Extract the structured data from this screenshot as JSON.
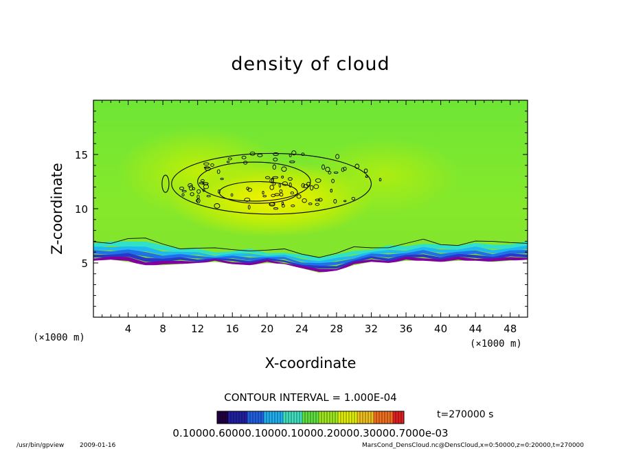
{
  "footer": {
    "program": "/usr/bin/gpview",
    "date": "2009-01-16",
    "source": "MarsCond_DensCloud.nc@DensCloud,x=0:50000,z=0:20000,t=270000"
  },
  "colors": {
    "frame": "#000000",
    "ground": "#ffffff",
    "bg_green": "#7ce632",
    "core_yellow": "#e8f000",
    "base_cyan": "#20d8e0",
    "base_blue": "#2050e0",
    "base_purple": "#8000a0",
    "contour": "#000000"
  },
  "chart_data": {
    "type": "heatmap",
    "title": "density of cloud",
    "xlabel": "X-coordinate",
    "ylabel": "Z-coordinate",
    "x_unit_label": "(×1000 m)",
    "y_unit_label": "(×1000 m)",
    "xlim": [
      0,
      50
    ],
    "ylim": [
      0,
      20
    ],
    "x_ticks": [
      4,
      8,
      12,
      16,
      20,
      24,
      28,
      32,
      36,
      40,
      44,
      48
    ],
    "y_ticks": [
      5,
      10,
      15
    ],
    "grid": false,
    "contour_interval_text": "CONTOUR INTERVAL = 1.000E-04",
    "time_text": "t=270000 s",
    "colorbar_labels_text": "0.10000.60000.10000.10000.20000.30000.7000e-03",
    "colorbar_colors": [
      "#200040",
      "#2020a0",
      "#2060e0",
      "#20b0f0",
      "#40e0c0",
      "#60e040",
      "#a0e820",
      "#e0f000",
      "#f0c020",
      "#f07020",
      "#e02020"
    ],
    "cloud_base_profile": {
      "x": [
        0,
        2,
        4,
        6,
        8,
        10,
        12,
        14,
        16,
        18,
        20,
        22,
        24,
        26,
        28,
        30,
        32,
        34,
        36,
        38,
        40,
        42,
        44,
        46,
        48,
        50
      ],
      "z": [
        6.8,
        6.9,
        7.1,
        6.9,
        6.6,
        6.4,
        6.2,
        6.0,
        6.1,
        6.2,
        6.0,
        5.9,
        5.7,
        5.6,
        5.7,
        6.1,
        6.3,
        6.5,
        6.6,
        6.8,
        6.6,
        6.7,
        6.8,
        6.6,
        6.8,
        6.9
      ]
    },
    "bottom_edge_profile": {
      "x": [
        0,
        2,
        4,
        6,
        8,
        10,
        12,
        14,
        16,
        18,
        20,
        22,
        24,
        26,
        28,
        30,
        32,
        34,
        36,
        38,
        40,
        42,
        44,
        46,
        48,
        50
      ],
      "z": [
        5.2,
        5.3,
        5.1,
        4.8,
        4.8,
        4.9,
        5.0,
        5.1,
        4.9,
        4.8,
        5.0,
        4.9,
        4.5,
        4.1,
        4.3,
        4.8,
        5.1,
        5.0,
        5.2,
        5.2,
        5.1,
        5.2,
        5.2,
        5.1,
        5.2,
        5.3
      ]
    },
    "core_contours": [
      {
        "cx": 19.0,
        "cz": 11.5,
        "rx": 4.5,
        "rz": 1.0
      },
      {
        "cx": 18.5,
        "cz": 12.5,
        "rx": 6.5,
        "rz": 1.8
      },
      {
        "cx": 20.5,
        "cz": 12.3,
        "rx": 11.5,
        "rz": 2.8
      },
      {
        "cx": 8.3,
        "cz": 12.3,
        "rx": 0.4,
        "rz": 0.8
      }
    ]
  }
}
